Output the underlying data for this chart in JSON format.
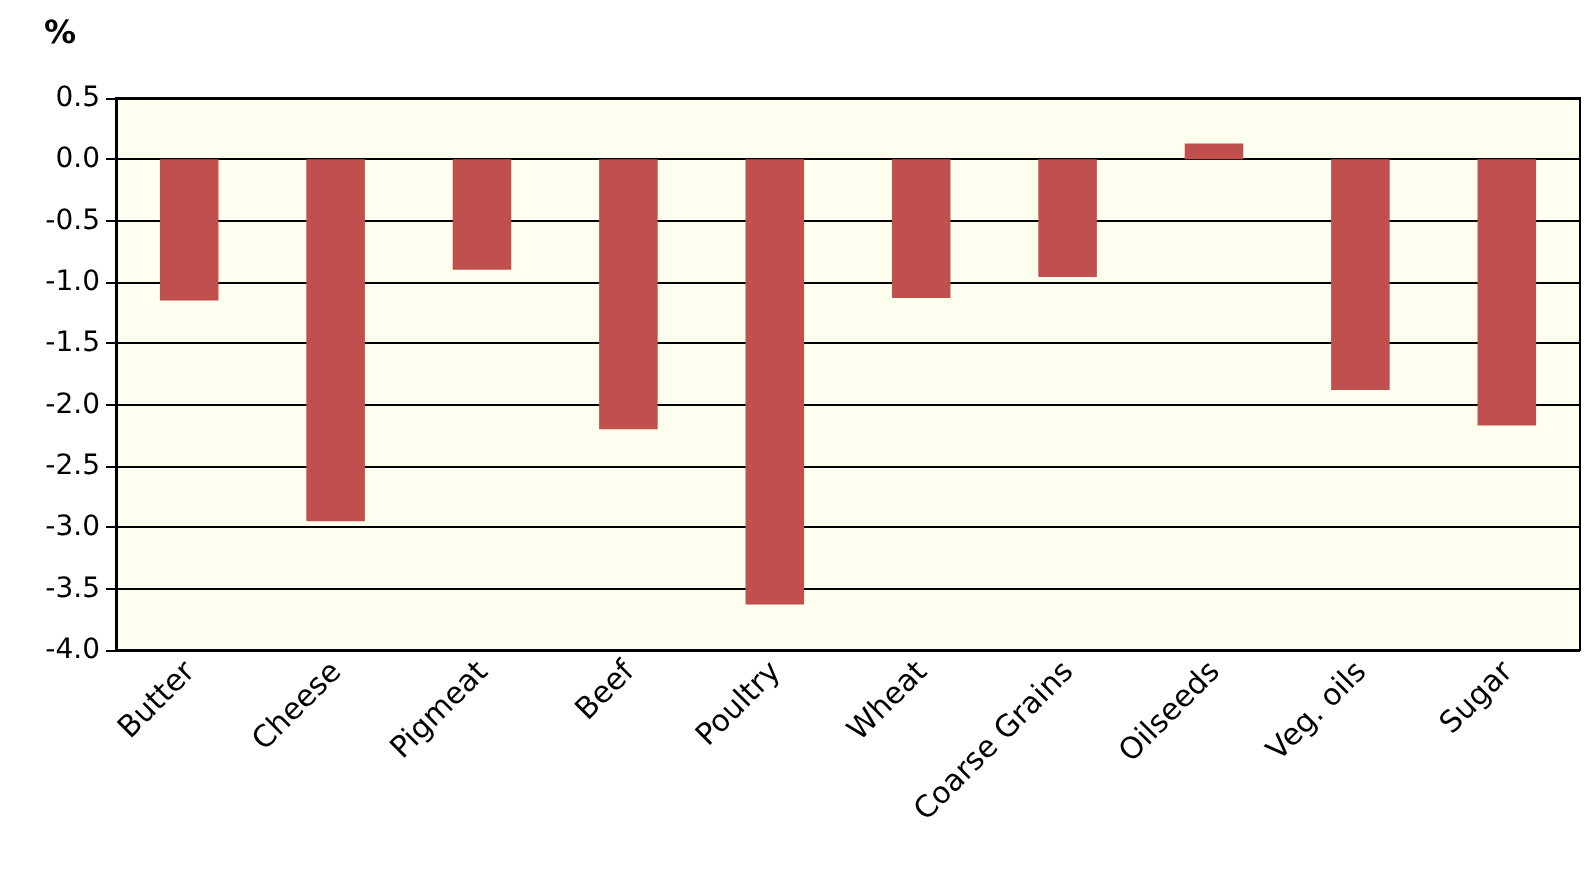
{
  "chart_data": {
    "type": "bar",
    "ylabel": "%",
    "categories": [
      "Butter",
      "Cheese",
      "Pigmeat",
      "Beef",
      "Poultry",
      "Wheat",
      "Coarse Grains",
      "Oilseeds",
      "Veg. oils",
      "Sugar"
    ],
    "values": [
      -1.15,
      -2.95,
      -0.9,
      -2.2,
      -3.63,
      -1.13,
      -0.96,
      0.13,
      -1.88,
      -2.17
    ],
    "color": "#c0504d",
    "ylim": [
      -4.0,
      0.5
    ],
    "yticks": [
      {
        "value": -4,
        "label": "-4.0"
      },
      -3.5,
      {
        "value": -3,
        "label": "-3.0"
      },
      -2.5,
      {
        "value": -2,
        "label": "-2.0"
      },
      -1.5,
      {
        "value": -1,
        "label": "-1.0"
      },
      -0.5,
      {
        "value": 0,
        "label": "0.0"
      },
      0.5
    ],
    "grid": "y"
  }
}
